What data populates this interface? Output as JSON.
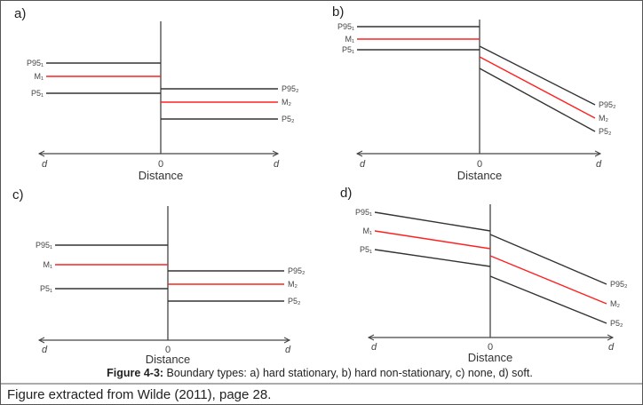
{
  "figure": {
    "caption_label": "Figure 4-3:",
    "caption_text": " Boundary types: a) hard stationary, b) hard non-stationary, c) none, d) soft.",
    "source_note": "Figure extracted from Wilde (2011), page 28.",
    "colors": {
      "mean": "#ff2020",
      "percentiles": "#333333",
      "border": "#555555"
    },
    "panels": [
      {
        "id": "a",
        "label": "a)",
        "type": "hard stationary",
        "x_label": "Distance",
        "ticks": [
          "d",
          "0",
          "d"
        ],
        "left_labels": [
          "P95₁",
          "M₁",
          "P5₁"
        ],
        "right_labels": [
          "P95₂",
          "M₂",
          "P5₂"
        ]
      },
      {
        "id": "b",
        "label": "b)",
        "type": "hard non-stationary",
        "x_label": "Distance",
        "ticks": [
          "d",
          "0",
          "d"
        ],
        "left_labels": [
          "P95₁",
          "M₁",
          "P5₁"
        ],
        "right_labels": [
          "P95₂",
          "M₂",
          "P5₂"
        ]
      },
      {
        "id": "c",
        "label": "c)",
        "type": "none",
        "x_label": "Distance",
        "ticks": [
          "d",
          "0",
          "d"
        ],
        "left_labels": [
          "P95₁",
          "M₁",
          "P5₁"
        ],
        "right_labels": [
          "P95₂",
          "M₂",
          "P5₂"
        ]
      },
      {
        "id": "d",
        "label": "d)",
        "type": "soft",
        "x_label": "Distance",
        "ticks": [
          "d",
          "0",
          "d"
        ],
        "left_labels": [
          "P95₁",
          "M₁",
          "P5₁"
        ],
        "right_labels": [
          "P95₂",
          "M₂",
          "P5₂"
        ]
      }
    ]
  }
}
